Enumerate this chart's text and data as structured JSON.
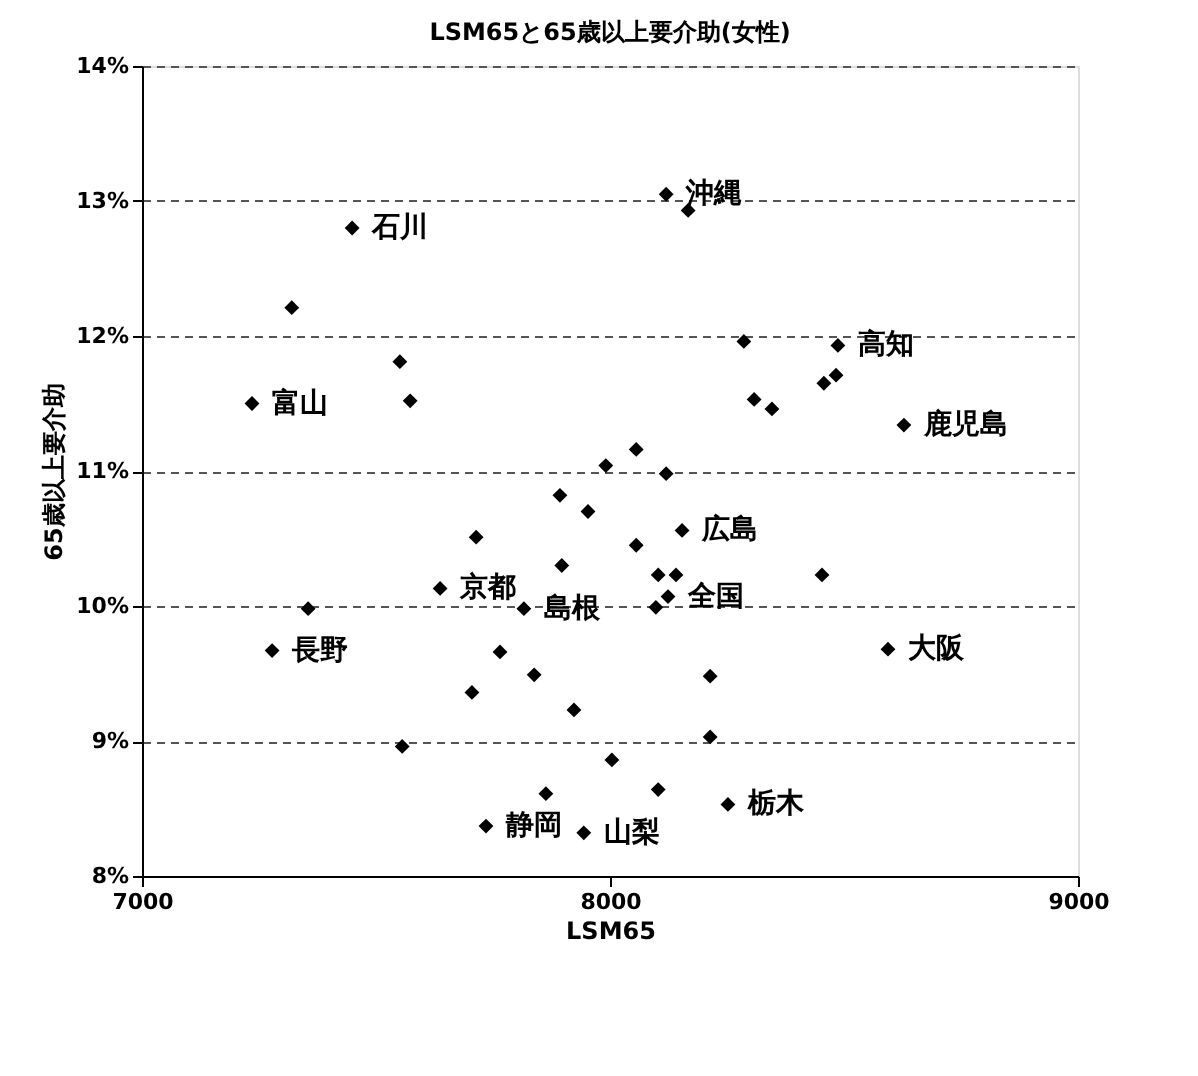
{
  "chart_data": {
    "type": "scatter",
    "title": "LSM65と65歳以上要介助(女性)",
    "xlabel": "LSM65",
    "ylabel": "65歳以上要介助",
    "x": [
      7449,
      7320,
      7551,
      7573,
      7235,
      7991,
      8120,
      8167,
      8286,
      8487,
      8457,
      8483,
      8308,
      8346,
      8628,
      8056,
      8120,
      7893,
      7953,
      7714,
      7897,
      7637,
      7816,
      7355,
      7278,
      7765,
      7838,
      7705,
      7923,
      7556,
      7863,
      7735,
      7944,
      8154,
      8056,
      8103,
      8141,
      8453,
      8124,
      8098,
      8594,
      8214,
      8214,
      8004,
      8103,
      8252
    ],
    "series": [
      {
        "color": "#000000",
        "values": [
          12.8,
          12.21,
          11.81,
          11.52,
          11.5,
          11.04,
          13.05,
          12.93,
          11.96,
          11.93,
          11.65,
          11.71,
          11.53,
          11.46,
          11.34,
          11.16,
          10.98,
          10.82,
          10.7,
          10.51,
          10.3,
          10.13,
          9.98,
          9.98,
          9.67,
          9.66,
          9.49,
          9.36,
          9.23,
          8.96,
          8.61,
          8.37,
          8.32,
          10.56,
          10.45,
          10.23,
          10.23,
          10.23,
          10.07,
          9.99,
          9.68,
          9.48,
          9.03,
          8.86,
          8.64,
          8.53
        ]
      }
    ],
    "annotations": [
      {
        "text": "石川",
        "x": 7449,
        "y": 12.8
      },
      {
        "text": "富山",
        "x": 7235,
        "y": 11.5
      },
      {
        "text": "沖縄",
        "x": 8120,
        "y": 13.05
      },
      {
        "text": "高知",
        "x": 8487,
        "y": 11.93
      },
      {
        "text": "鹿児島",
        "x": 8628,
        "y": 11.34
      },
      {
        "text": "京都",
        "x": 7637,
        "y": 10.13
      },
      {
        "text": "島根",
        "x": 7816,
        "y": 9.98
      },
      {
        "text": "長野",
        "x": 7278,
        "y": 9.67
      },
      {
        "text": "静岡",
        "x": 7735,
        "y": 8.37
      },
      {
        "text": "山梨",
        "x": 7944,
        "y": 8.32
      },
      {
        "text": "広島",
        "x": 8154,
        "y": 10.56
      },
      {
        "text": "全国",
        "x": 8124,
        "y": 10.07
      },
      {
        "text": "大阪",
        "x": 8594,
        "y": 9.68
      },
      {
        "text": "栃木",
        "x": 8252,
        "y": 8.53
      }
    ],
    "xlim": [
      7000,
      9000
    ],
    "xticks": [
      7000,
      8000,
      9000
    ],
    "ylim": [
      8,
      14
    ],
    "yticks": [
      {
        "value": 8,
        "label": "8%"
      },
      {
        "value": 9,
        "label": "9%"
      },
      {
        "value": 10,
        "label": "10%"
      },
      {
        "value": 11,
        "label": "11%"
      },
      {
        "value": 12,
        "label": "12%"
      },
      {
        "value": 13,
        "label": "13%"
      },
      {
        "value": 14,
        "label": "14%"
      }
    ],
    "grid": "y",
    "marker": "diamond"
  }
}
